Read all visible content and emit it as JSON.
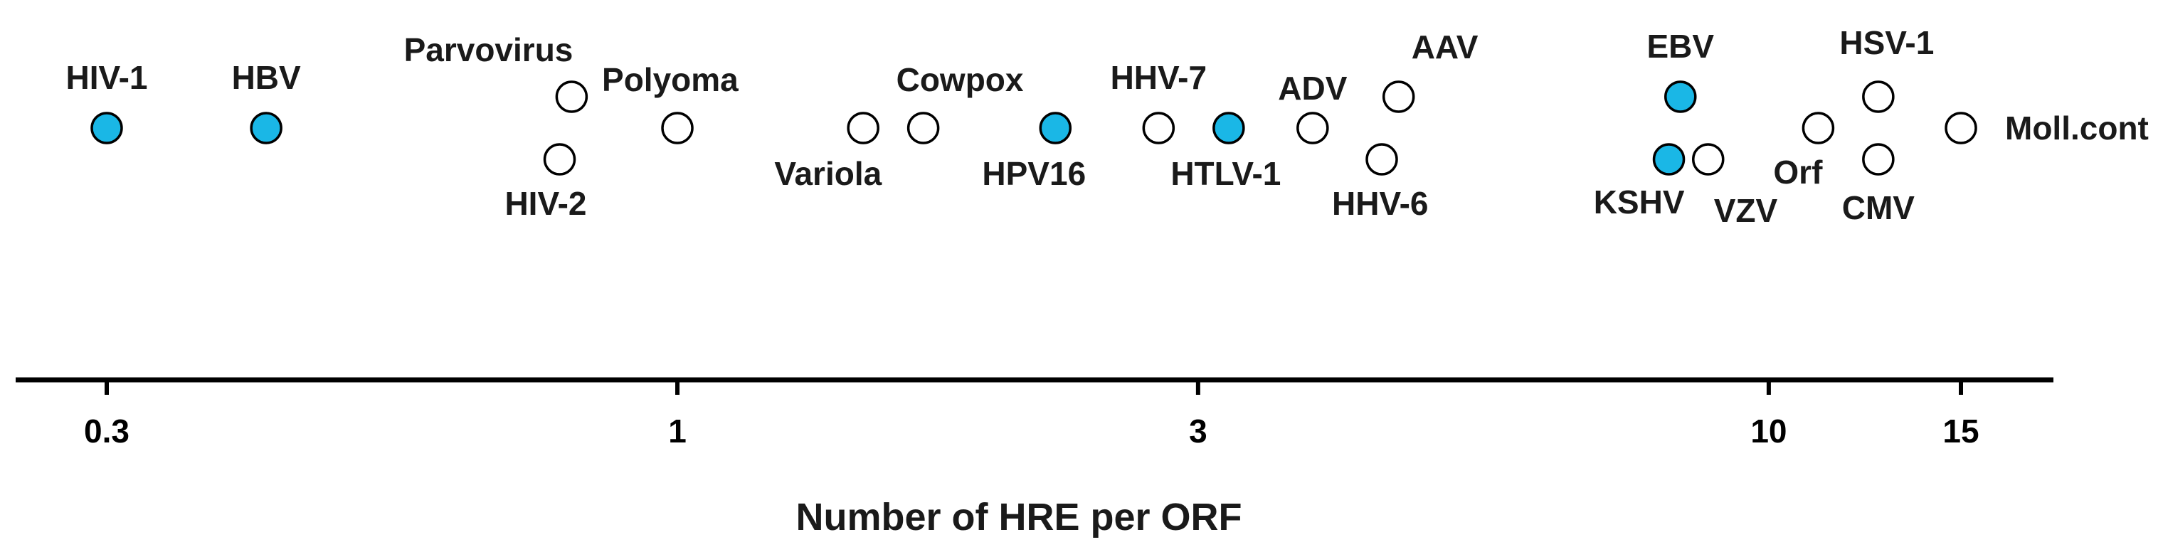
{
  "chart_data": {
    "type": "scatter",
    "xlabel": "Number of HRE per ORF",
    "x_scale": "log",
    "xlim": [
      0.27,
      18.5
    ],
    "ticks": [
      {
        "value": 0.3,
        "label": "0.3"
      },
      {
        "value": 1,
        "label": "1"
      },
      {
        "value": 3,
        "label": "3"
      },
      {
        "value": 10,
        "label": "10"
      },
      {
        "value": 15,
        "label": "15"
      }
    ],
    "colors": {
      "highlighted": "#1ab7e6",
      "default": "#ffffff",
      "outline": "#000000"
    },
    "points": [
      {
        "name": "HIV-1",
        "x": 0.3,
        "highlighted": true,
        "row": 0,
        "label_pos": "above"
      },
      {
        "name": "HBV",
        "x": 0.42,
        "highlighted": true,
        "row": 0,
        "label_pos": "above"
      },
      {
        "name": "HIV-2",
        "x": 0.78,
        "highlighted": false,
        "row": 1,
        "label_pos": "below-left"
      },
      {
        "name": "Parvovirus",
        "x": 0.8,
        "highlighted": false,
        "row": -1,
        "label_pos": "above-left"
      },
      {
        "name": "Polyoma",
        "x": 1.0,
        "highlighted": false,
        "row": 0,
        "label_pos": "above-right"
      },
      {
        "name": "Variola",
        "x": 1.48,
        "highlighted": false,
        "row": 0,
        "label_pos": "below-left"
      },
      {
        "name": "Cowpox",
        "x": 1.68,
        "highlighted": false,
        "row": 0,
        "label_pos": "above-right"
      },
      {
        "name": "HPV16",
        "x": 2.22,
        "highlighted": true,
        "row": 0,
        "label_pos": "below"
      },
      {
        "name": "HHV-7",
        "x": 2.76,
        "highlighted": false,
        "row": 0,
        "label_pos": "above"
      },
      {
        "name": "HTLV-1",
        "x": 3.2,
        "highlighted": true,
        "row": 0,
        "label_pos": "below"
      },
      {
        "name": "ADV",
        "x": 3.82,
        "highlighted": false,
        "row": 0,
        "label_pos": "above"
      },
      {
        "name": "AAV",
        "x": 4.58,
        "highlighted": false,
        "row": -1,
        "label_pos": "above-right"
      },
      {
        "name": "HHV-6",
        "x": 4.42,
        "highlighted": false,
        "row": 1,
        "label_pos": "below-right"
      },
      {
        "name": "EBV",
        "x": 8.3,
        "highlighted": true,
        "row": -1,
        "label_pos": "above"
      },
      {
        "name": "KSHV",
        "x": 8.1,
        "highlighted": true,
        "row": 1,
        "label_pos": "below-left"
      },
      {
        "name": "VZV",
        "x": 8.8,
        "highlighted": false,
        "row": 1,
        "label_pos": "below-right"
      },
      {
        "name": "Orf",
        "x": 11.1,
        "highlighted": false,
        "row": 0,
        "label_pos": "below-left"
      },
      {
        "name": "HSV-1",
        "x": 12.6,
        "highlighted": false,
        "row": -1,
        "label_pos": "above"
      },
      {
        "name": "CMV",
        "x": 12.6,
        "highlighted": false,
        "row": 1,
        "label_pos": "below"
      },
      {
        "name": "Moll.cont",
        "x": 15.0,
        "highlighted": false,
        "row": 0,
        "label_pos": "right"
      }
    ]
  }
}
